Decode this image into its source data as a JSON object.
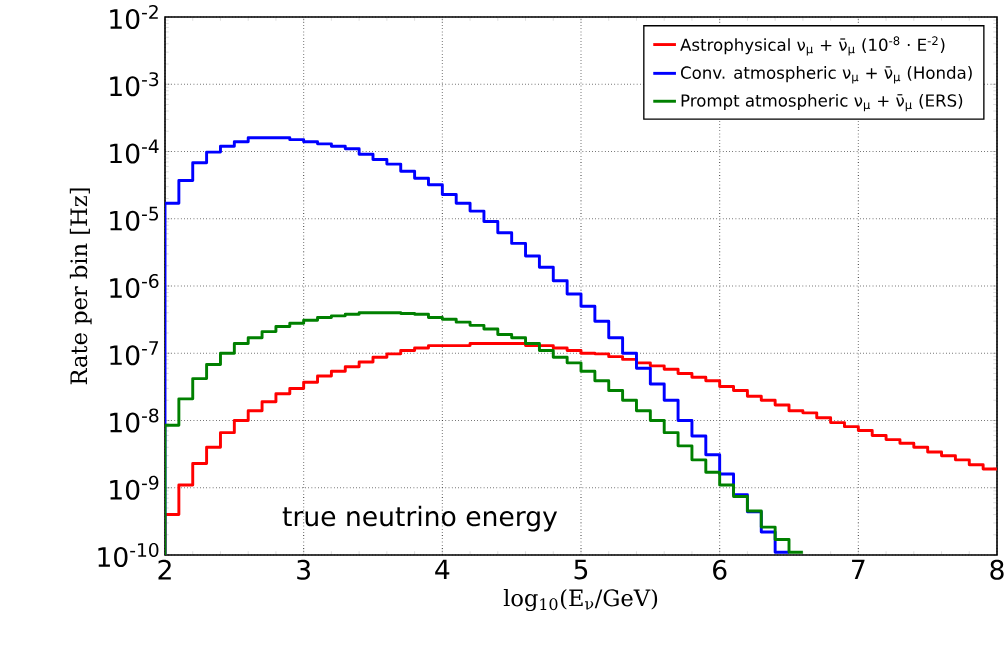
{
  "chart_data": {
    "type": "histogram",
    "xlabel": "log$_{10}$(E$_{ν}$/GeV)",
    "ylabel": "Rate per bin [Hz]",
    "annotations": [
      "true neutrino energy"
    ],
    "bins": [
      2.0,
      2.1,
      2.2,
      2.3,
      2.4,
      2.5,
      2.6,
      2.7,
      2.8,
      2.9,
      3.0,
      3.1,
      3.2,
      3.3,
      3.4,
      3.5,
      3.6,
      3.7,
      3.8,
      3.9,
      4.0,
      4.1,
      4.2,
      4.3,
      4.4,
      4.5,
      4.6,
      4.7,
      4.8,
      4.9,
      5.0,
      5.1,
      5.2,
      5.3,
      5.4,
      5.5,
      5.6,
      5.7,
      5.8,
      5.9,
      6.0,
      6.1,
      6.2,
      6.3,
      6.4,
      6.5,
      6.6,
      6.7,
      6.8,
      6.9,
      7.0,
      7.1,
      7.2,
      7.3,
      7.4,
      7.5,
      7.6,
      7.7,
      7.8,
      7.9,
      8.0
    ],
    "series": [
      {
        "name": "Astrophysical ν$_{μ}$ + ν̄$_{μ}$  (10$^{-8}$ · E$^{-2}$)",
        "color": "#ff0000",
        "values": [
          4e-10,
          1.1e-09,
          2.3e-09,
          4e-09,
          6.6e-09,
          1e-08,
          1.4e-08,
          1.9e-08,
          2.5e-08,
          3e-08,
          3.7e-08,
          4.6e-08,
          5.4e-08,
          6.3e-08,
          7.4e-08,
          8.7e-08,
          9.8e-08,
          1.1e-07,
          1.2e-07,
          1.3e-07,
          1.3e-07,
          1.3e-07,
          1.4e-07,
          1.4e-07,
          1.4e-07,
          1.4e-07,
          1.3e-07,
          1.3e-07,
          1.2e-07,
          1.1e-07,
          1e-07,
          9.8e-08,
          8.9e-08,
          8.1e-08,
          7.2e-08,
          6.5e-08,
          5.8e-08,
          5e-08,
          4.4e-08,
          3.9e-08,
          3.2e-08,
          2.8e-08,
          2.3e-08,
          2e-08,
          1.7e-08,
          1.4e-08,
          1.3e-08,
          1.1e-08,
          9.3e-09,
          8.1e-09,
          7.1e-09,
          6e-09,
          5.2e-09,
          4.6e-09,
          4e-09,
          3.4e-09,
          3e-09,
          2.6e-09,
          2.2e-09,
          1.9e-09
        ]
      },
      {
        "name": "Conv. atmospheric ν$_{μ}$ + ν̄$_{μ}$ (Honda)",
        "color": "#0000ff",
        "values": [
          1.7e-05,
          3.7e-05,
          6.8e-05,
          9.8e-05,
          0.00012,
          0.00014,
          0.00016,
          0.00016,
          0.00016,
          0.00015,
          0.00014,
          0.00013,
          0.00012,
          0.00011,
          9.1e-05,
          7.6e-05,
          6.5e-05,
          5.1e-05,
          4e-05,
          3.2e-05,
          2.3e-05,
          1.7e-05,
          1.3e-05,
          9.1e-06,
          6.2e-06,
          4.3e-06,
          2.8e-06,
          1.9e-06,
          1.2e-06,
          7.6e-07,
          5e-07,
          3e-07,
          1.7e-07,
          1e-07,
          6e-08,
          3.5e-08,
          2e-08,
          1e-08,
          5.9e-09,
          3.1e-09,
          1.6e-09,
          7.9e-10,
          4.4e-10,
          2.2e-10,
          1.1e-10
        ],
        "bins": [
          2.0,
          2.1,
          2.2,
          2.3,
          2.4,
          2.5,
          2.6,
          2.7,
          2.8,
          2.9,
          3.0,
          3.1,
          3.2,
          3.3,
          3.4,
          3.5,
          3.6,
          3.7,
          3.8,
          3.9,
          4.0,
          4.1,
          4.2,
          4.3,
          4.4,
          4.5,
          4.6,
          4.7,
          4.8,
          4.9,
          5.0,
          5.1,
          5.2,
          5.3,
          5.4,
          5.5,
          5.6,
          5.7,
          5.8,
          5.9,
          6.0,
          6.1,
          6.2,
          6.3,
          6.4,
          6.5
        ]
      },
      {
        "name": "Prompt atmospheric ν$_{μ}$ + ν̄$_{μ}$ (ERS)",
        "color": "#008000",
        "values": [
          8.5e-09,
          2.1e-08,
          4.2e-08,
          6.8e-08,
          1e-07,
          1.4e-07,
          1.7e-07,
          2.1e-07,
          2.5e-07,
          2.8e-07,
          3.1e-07,
          3.4e-07,
          3.6e-07,
          3.8e-07,
          4e-07,
          4e-07,
          4e-07,
          3.9e-07,
          3.8e-07,
          3.4e-07,
          3.2e-07,
          2.9e-07,
          2.6e-07,
          2.3e-07,
          1.9e-07,
          1.7e-07,
          1.4e-07,
          1.1e-07,
          8.7e-08,
          7.2e-08,
          5.4e-08,
          3.9e-08,
          2.8e-08,
          2e-08,
          1.4e-08,
          1e-08,
          6.6e-09,
          4.2e-09,
          2.6e-09,
          1.7e-09,
          1.1e-09,
          7.4e-10,
          4.5e-10,
          2.6e-10,
          1.7e-10,
          1.1e-10
        ],
        "bins": [
          2.0,
          2.1,
          2.2,
          2.3,
          2.4,
          2.5,
          2.6,
          2.7,
          2.8,
          2.9,
          3.0,
          3.1,
          3.2,
          3.3,
          3.4,
          3.5,
          3.6,
          3.7,
          3.8,
          3.9,
          4.0,
          4.1,
          4.2,
          4.3,
          4.4,
          4.5,
          4.6,
          4.7,
          4.8,
          4.9,
          5.0,
          5.1,
          5.2,
          5.3,
          5.4,
          5.5,
          5.6,
          5.7,
          5.8,
          5.9,
          6.0,
          6.1,
          6.2,
          6.3,
          6.4,
          6.5,
          6.6
        ]
      }
    ],
    "xlim": [
      2,
      8
    ],
    "xticks": [
      2,
      3,
      4,
      5,
      6,
      7,
      8
    ],
    "ylim": [
      1e-10,
      0.01
    ],
    "log": true,
    "yticks": [
      {
        "value": 1e-10,
        "label": "10$^{-10}$"
      },
      {
        "value": 1e-09,
        "label": "10$^{-9}$"
      },
      {
        "value": 1e-08,
        "label": "10$^{-8}$"
      },
      {
        "value": 1e-07,
        "label": "10$^{-7}$"
      },
      {
        "value": 1e-06,
        "label": "10$^{-6}$"
      },
      {
        "value": 1e-05,
        "label": "10$^{-5}$"
      },
      {
        "value": 0.0001,
        "label": "10$^{-4}$"
      },
      {
        "value": 0.001,
        "label": "10$^{-3}$"
      },
      {
        "value": 0.01,
        "label": "10$^{-2}$"
      }
    ],
    "grid": true,
    "legend": "top right"
  }
}
